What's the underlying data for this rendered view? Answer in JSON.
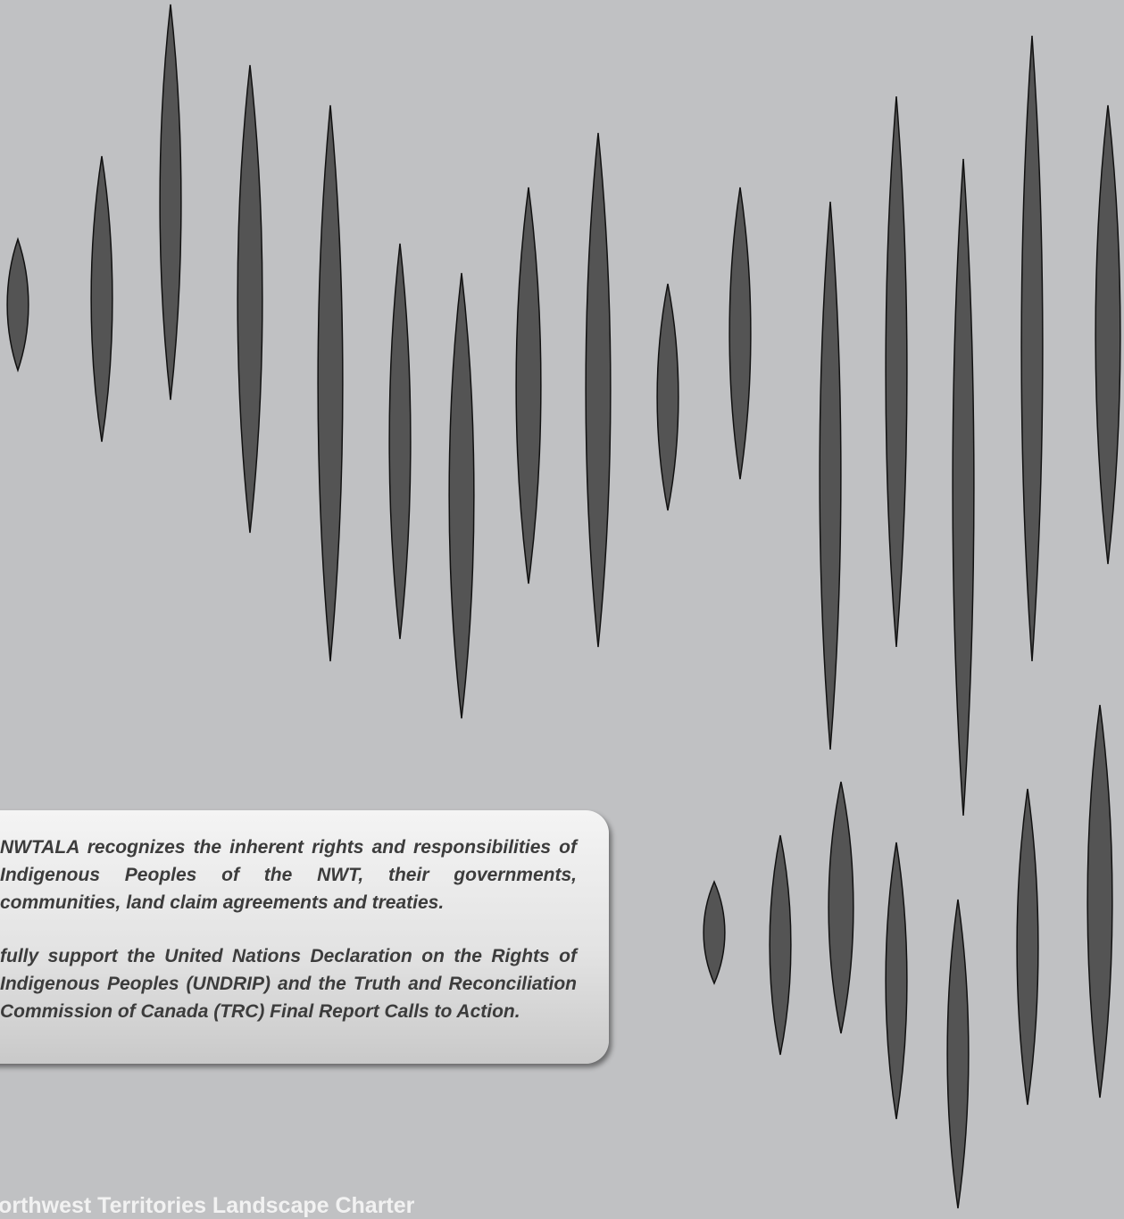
{
  "page": {
    "background_color": "#c0c1c3",
    "decoration_color": "#545454"
  },
  "statement": {
    "paragraph_1": "NWTALA recognizes the inherent rights and responsibilities of Indigenous Peoples of the NWT, their governments, communities, land claim agreements and treaties.",
    "paragraph_2": "fully support the United Nations Declaration on the Rights of Indigenous Peoples (UNDRIP) and the Truth and Reconciliation Commission of Canada (TRC) Final Report Calls to Action."
  },
  "footer": {
    "title": "Northwest Territories Landscape Charter"
  }
}
